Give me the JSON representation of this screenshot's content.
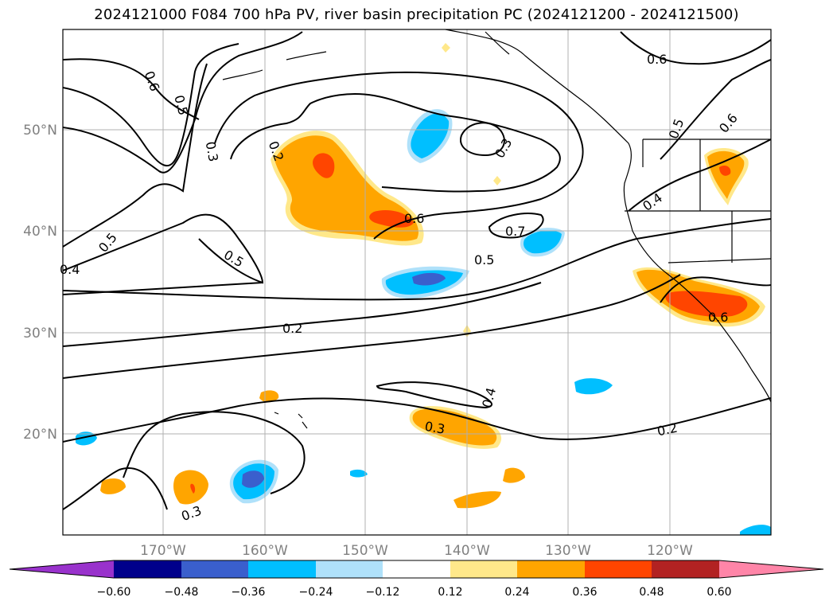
{
  "title": "2024121000 F084 700 hPa PV, river basin precipitation PC (2024121200 - 2024121500)",
  "map": {
    "lat_ticks": [
      "20°N",
      "30°N",
      "40°N",
      "50°N"
    ],
    "lon_ticks": [
      "170°W",
      "160°W",
      "150°W",
      "140°W",
      "130°W",
      "120°W"
    ],
    "contour_labels": [
      "0.6",
      "0.5",
      "0.3",
      "0.2",
      "0.5",
      "0.4",
      "0.5",
      "0.2",
      "0.6",
      "0.5",
      "0.7",
      "0.3",
      "0.6",
      "0.4",
      "0.5",
      "0.6",
      "0.6",
      "0.3",
      "0.4",
      "0.2",
      "0.3"
    ]
  },
  "colorbar": {
    "ticks": [
      "−0.60",
      "−0.48",
      "−0.36",
      "−0.24",
      "−0.12",
      "0.12",
      "0.24",
      "0.36",
      "0.48",
      "0.60"
    ],
    "colors": [
      "#9932cc",
      "#00008b",
      "#3a5fcd",
      "#00bfff",
      "#afe1fa",
      "#ffffff",
      "#ffe88a",
      "#ffa500",
      "#ff4500",
      "#b22222",
      "#ff85a8"
    ]
  }
}
